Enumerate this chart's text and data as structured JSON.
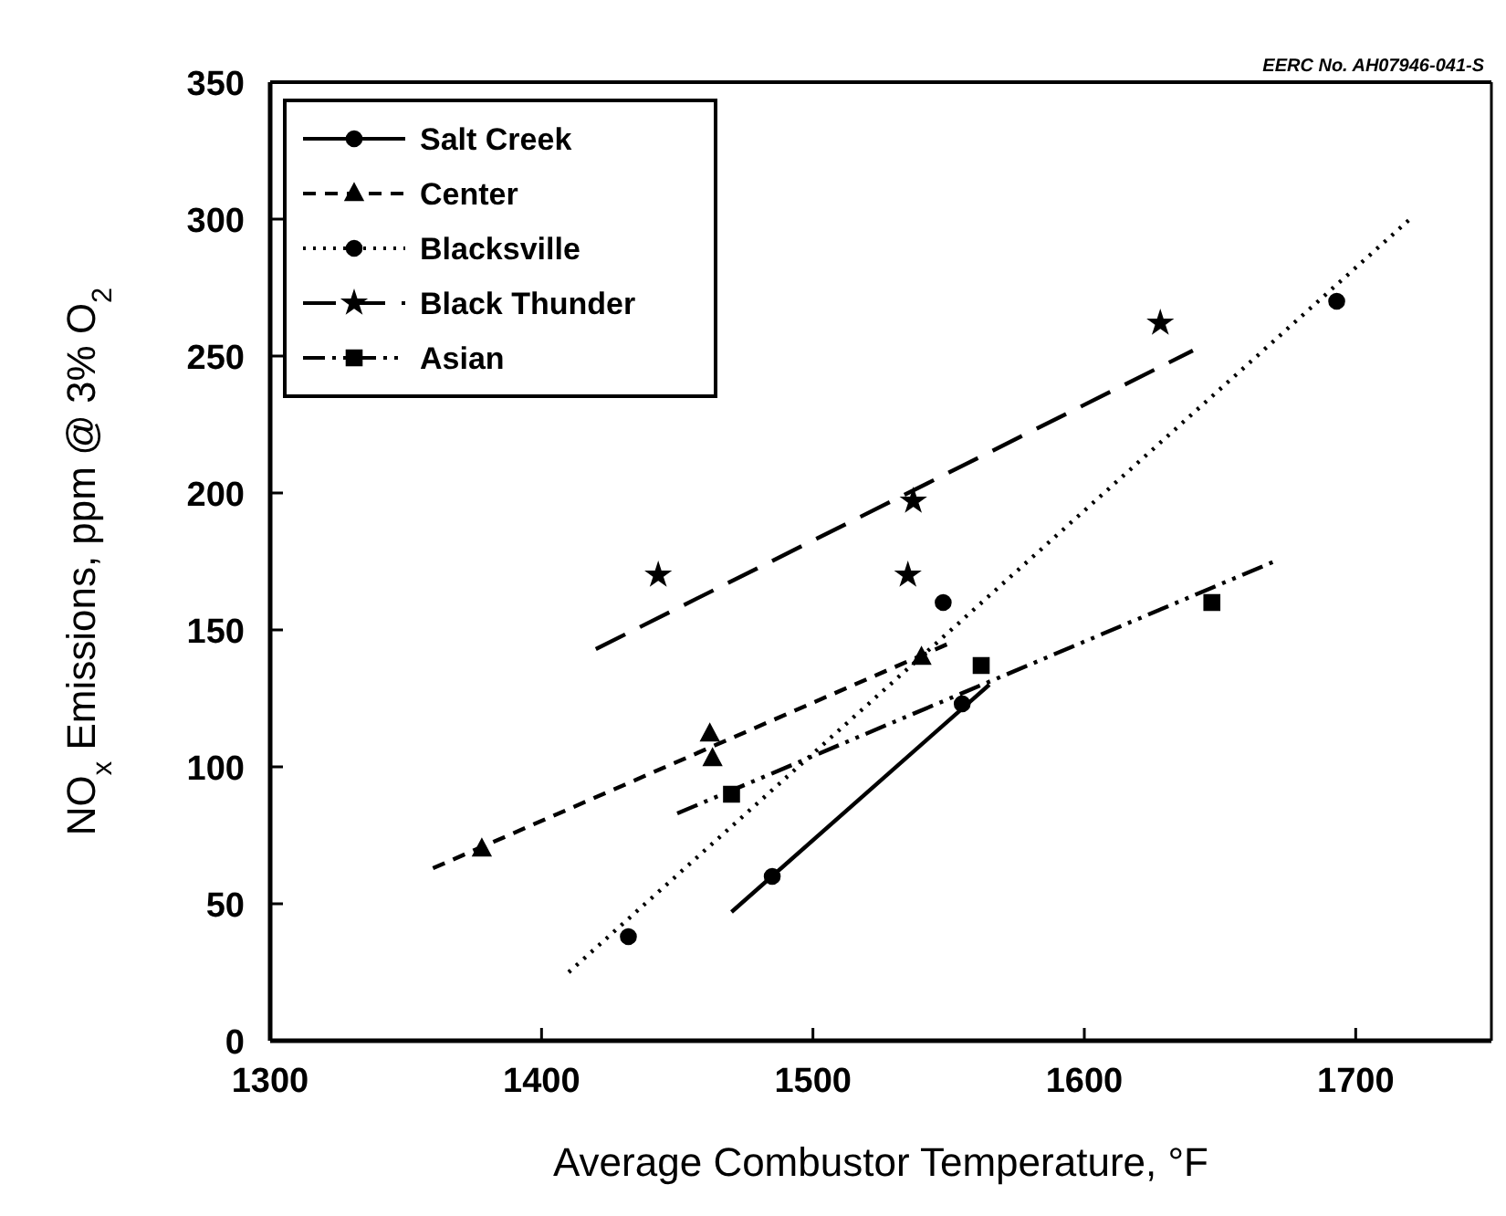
{
  "chart_data": {
    "type": "scatter",
    "xlabel": "Average Combustor Temperature, °F",
    "ylabel": "NO$_{x}$  Emissions, ppm @ 3% O$_{2}$",
    "annotations": [
      "EERC No. AH07946-041-S"
    ],
    "xlim": [
      1300,
      1750
    ],
    "xticks": [
      1300,
      1400,
      1500,
      1600,
      1700
    ],
    "ylim": [
      0,
      350
    ],
    "yticks": [
      0,
      50,
      100,
      150,
      200,
      250,
      300,
      350
    ],
    "grid": false,
    "legend": "top left",
    "series": [
      {
        "name": "Salt Creek",
        "color": "#000000",
        "marker": "circle",
        "line_style": "solid",
        "x": [
          1485,
          1555
        ],
        "values": [
          60,
          123
        ]
      },
      {
        "name": "Center",
        "color": "#000000",
        "marker": "triangle",
        "line_style": "dashed",
        "x": [
          1378,
          1462,
          1463,
          1540
        ],
        "values": [
          70,
          112,
          103,
          140
        ]
      },
      {
        "name": "Blacksville",
        "color": "#000000",
        "marker": "circle",
        "line_style": "dotted",
        "x": [
          1432,
          1548,
          1693
        ],
        "values": [
          38,
          160,
          270
        ]
      },
      {
        "name": "Black Thunder",
        "color": "#000000",
        "marker": "star",
        "line_style": "longdash",
        "x": [
          1443,
          1537,
          1535,
          1628
        ],
        "values": [
          170,
          197,
          170,
          262
        ]
      },
      {
        "name": "Asian",
        "color": "#000000",
        "marker": "square",
        "line_style": "dashdotdot",
        "x": [
          1470,
          1562,
          1647
        ],
        "values": [
          90,
          137,
          160
        ]
      },
      {
        "type": "line",
        "color": "#000000",
        "line_style": "solid",
        "x": [
          1470,
          1565
        ],
        "values": [
          47,
          130
        ]
      },
      {
        "type": "line",
        "color": "#000000",
        "line_style": "dashed",
        "x": [
          1360,
          1550
        ],
        "values": [
          63,
          145
        ]
      },
      {
        "type": "line",
        "color": "#000000",
        "line_style": "dotted",
        "x": [
          1410,
          1720
        ],
        "values": [
          25,
          300
        ]
      },
      {
        "type": "line",
        "color": "#000000",
        "line_style": "longdash",
        "x": [
          1420,
          1640
        ],
        "values": [
          143,
          252
        ]
      },
      {
        "type": "line",
        "color": "#000000",
        "line_style": "dashdotdot",
        "x": [
          1450,
          1670
        ],
        "values": [
          83,
          175
        ]
      }
    ]
  }
}
